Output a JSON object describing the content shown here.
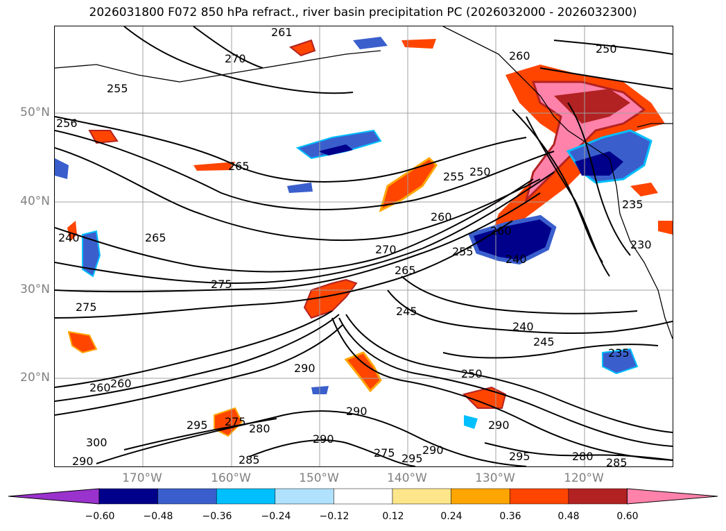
{
  "title": "2026031800 F072 850 hPa refract., river basin precipitation PC (2026032000 - 2026032300)",
  "lat_labels": [
    "50°N",
    "40°N",
    "30°N",
    "20°N"
  ],
  "lon_labels": [
    "170°W",
    "160°W",
    "150°W",
    "140°W",
    "130°W",
    "120°W"
  ],
  "colorbar": {
    "ticks": [
      "−0.60",
      "−0.48",
      "−0.36",
      "−0.24",
      "−0.12",
      "0.12",
      "0.24",
      "0.36",
      "0.48",
      "0.60"
    ],
    "colors": [
      "#9a32cd",
      "#00008b",
      "#3a5fcd",
      "#00bfff",
      "#b0e2ff",
      "#ffffff",
      "#fde68a",
      "#ffa500",
      "#ff4500",
      "#b22222",
      "#ff82ab"
    ]
  },
  "contour_labels": [
    "261",
    "260",
    "270",
    "255",
    "256",
    "265",
    "250",
    "255",
    "250",
    "270",
    "260",
    "245",
    "275",
    "265",
    "255",
    "240",
    "260",
    "235",
    "230",
    "240",
    "245",
    "265",
    "240",
    "275",
    "235",
    "290",
    "250",
    "290",
    "290",
    "295",
    "275",
    "280",
    "300",
    "290",
    "285",
    "290",
    "275",
    "295",
    "290",
    "295",
    "280",
    "285",
    "260",
    "260"
  ],
  "map": {
    "lat_range": [
      "10°N",
      "59°N"
    ],
    "lon_range": [
      "180°W",
      "110°W"
    ],
    "gridlines": true
  }
}
